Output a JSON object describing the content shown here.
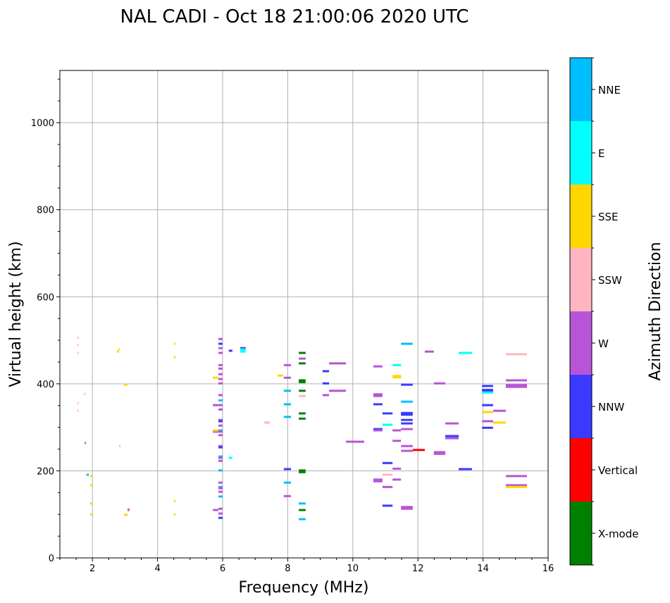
{
  "chart_data": {
    "type": "scatter",
    "title": "NAL CADI - Oct 18 21:00:06 2020 UTC",
    "xlabel": "Frequency (MHz)",
    "ylabel": "Virtual height (km)",
    "xlim": [
      1,
      16
    ],
    "ylim": [
      0,
      1120
    ],
    "xticks": [
      2,
      4,
      6,
      8,
      10,
      12,
      14,
      16
    ],
    "yticks": [
      0,
      200,
      400,
      600,
      800,
      1000
    ],
    "grid": true,
    "colorbar": {
      "label": "Azimuth Direction",
      "categories": [
        {
          "name": "X-mode",
          "color": "#008000"
        },
        {
          "name": "Vertical",
          "color": "#ff0000"
        },
        {
          "name": "NNW",
          "color": "#3a3aff"
        },
        {
          "name": "W",
          "color": "#b855d6"
        },
        {
          "name": "SSW",
          "color": "#ffb6c1"
        },
        {
          "name": "SSE",
          "color": "#ffd700"
        },
        {
          "name": "E",
          "color": "#00ffff"
        },
        {
          "name": "NNE",
          "color": "#00bfff"
        }
      ]
    },
    "segment_format": [
      "freq_start_MHz",
      "freq_end_MHz",
      "height_km",
      "direction_index"
    ],
    "segments": [
      [
        1.54,
        1.58,
        506,
        4
      ],
      [
        1.54,
        1.58,
        489,
        4
      ],
      [
        1.54,
        1.58,
        471,
        4
      ],
      [
        1.74,
        1.78,
        377,
        4
      ],
      [
        1.54,
        1.58,
        356,
        4
      ],
      [
        1.54,
        1.58,
        338,
        4
      ],
      [
        1.76,
        1.8,
        264,
        3
      ],
      [
        1.82,
        1.89,
        191,
        7
      ],
      [
        1.93,
        2.0,
        188,
        5
      ],
      [
        1.93,
        2.0,
        167,
        5
      ],
      [
        1.93,
        2.0,
        125,
        5
      ],
      [
        1.93,
        2.0,
        100,
        5
      ],
      [
        2.8,
        2.84,
        479,
        5
      ],
      [
        2.75,
        2.82,
        474,
        5
      ],
      [
        2.82,
        2.86,
        257,
        4
      ],
      [
        2.97,
        3.08,
        398,
        5
      ],
      [
        3.08,
        3.14,
        113,
        5
      ],
      [
        3.08,
        3.14,
        110,
        3
      ],
      [
        2.97,
        3.08,
        99,
        5
      ],
      [
        4.5,
        4.55,
        492,
        5
      ],
      [
        4.5,
        4.55,
        461,
        5
      ],
      [
        4.5,
        4.55,
        131,
        5
      ],
      [
        4.5,
        4.55,
        100,
        5
      ],
      [
        5.87,
        6.0,
        503,
        3
      ],
      [
        5.87,
        6.0,
        492,
        2
      ],
      [
        5.87,
        6.0,
        482,
        3
      ],
      [
        5.87,
        6.0,
        471,
        3
      ],
      [
        5.87,
        6.0,
        443,
        3
      ],
      [
        5.87,
        6.0,
        435,
        3
      ],
      [
        5.87,
        6.0,
        422,
        3
      ],
      [
        5.87,
        6.0,
        411,
        3
      ],
      [
        5.87,
        6.0,
        401,
        3
      ],
      [
        5.87,
        6.0,
        374,
        3
      ],
      [
        5.87,
        6.0,
        362,
        7
      ],
      [
        5.7,
        6.0,
        351,
        3
      ],
      [
        5.87,
        6.0,
        341,
        3
      ],
      [
        5.87,
        6.0,
        317,
        3
      ],
      [
        5.87,
        6.0,
        314,
        2
      ],
      [
        5.87,
        6.0,
        304,
        3
      ],
      [
        5.87,
        6.0,
        293,
        7
      ],
      [
        5.7,
        6.0,
        290,
        3
      ],
      [
        5.87,
        6.0,
        282,
        3
      ],
      [
        5.87,
        6.0,
        257,
        3
      ],
      [
        5.87,
        6.0,
        254,
        2
      ],
      [
        5.87,
        6.0,
        233,
        7
      ],
      [
        5.87,
        6.0,
        230,
        3
      ],
      [
        5.87,
        6.0,
        223,
        3
      ],
      [
        5.87,
        6.0,
        201,
        7
      ],
      [
        5.87,
        6.0,
        173,
        3
      ],
      [
        5.87,
        6.0,
        163,
        7
      ],
      [
        5.87,
        6.0,
        160,
        3
      ],
      [
        5.87,
        6.0,
        152,
        3
      ],
      [
        5.87,
        6.0,
        141,
        7
      ],
      [
        5.87,
        6.0,
        113,
        3
      ],
      [
        5.7,
        5.87,
        110,
        3
      ],
      [
        5.87,
        6.0,
        102,
        3
      ],
      [
        5.87,
        6.0,
        92,
        2
      ],
      [
        5.7,
        5.87,
        414,
        5
      ],
      [
        5.7,
        5.87,
        293,
        5
      ],
      [
        6.19,
        6.3,
        476,
        2
      ],
      [
        6.54,
        6.71,
        482,
        2
      ],
      [
        6.54,
        6.71,
        479,
        6
      ],
      [
        6.54,
        6.71,
        474,
        6
      ],
      [
        6.19,
        6.3,
        230,
        6
      ],
      [
        7.28,
        7.45,
        311,
        4
      ],
      [
        7.69,
        7.86,
        419,
        5
      ],
      [
        7.88,
        8.1,
        443,
        3
      ],
      [
        7.88,
        8.1,
        414,
        3
      ],
      [
        7.88,
        8.1,
        384,
        7
      ],
      [
        7.88,
        8.1,
        353,
        7
      ],
      [
        7.88,
        8.1,
        324,
        7
      ],
      [
        7.88,
        8.1,
        204,
        2
      ],
      [
        7.88,
        8.1,
        173,
        7
      ],
      [
        7.88,
        8.1,
        142,
        3
      ],
      [
        8.34,
        8.55,
        471,
        0
      ],
      [
        8.34,
        8.55,
        458,
        3
      ],
      [
        8.34,
        8.55,
        447,
        0
      ],
      [
        8.34,
        8.55,
        408,
        0
      ],
      [
        8.34,
        8.55,
        404,
        0
      ],
      [
        8.34,
        8.55,
        384,
        0
      ],
      [
        8.34,
        8.55,
        372,
        4
      ],
      [
        8.34,
        8.55,
        332,
        0
      ],
      [
        8.34,
        8.55,
        320,
        0
      ],
      [
        8.34,
        8.55,
        201,
        0
      ],
      [
        8.34,
        8.55,
        197,
        0
      ],
      [
        8.34,
        8.55,
        125,
        7
      ],
      [
        8.34,
        8.55,
        110,
        0
      ],
      [
        8.34,
        8.55,
        89,
        7
      ],
      [
        9.07,
        9.27,
        429,
        2
      ],
      [
        9.07,
        9.27,
        401,
        2
      ],
      [
        9.27,
        9.79,
        447,
        3
      ],
      [
        9.27,
        9.79,
        384,
        3
      ],
      [
        9.07,
        9.27,
        374,
        3
      ],
      [
        9.79,
        10.35,
        267,
        3
      ],
      [
        10.63,
        10.91,
        440,
        3
      ],
      [
        11.22,
        11.48,
        443,
        6
      ],
      [
        11.22,
        11.48,
        418,
        5
      ],
      [
        11.22,
        11.48,
        415,
        5
      ],
      [
        11.48,
        11.84,
        398,
        2
      ],
      [
        10.63,
        10.91,
        376,
        3
      ],
      [
        10.63,
        10.91,
        372,
        3
      ],
      [
        10.63,
        10.91,
        353,
        2
      ],
      [
        11.48,
        11.84,
        359,
        7
      ],
      [
        10.91,
        11.22,
        332,
        2
      ],
      [
        11.48,
        11.84,
        333,
        2
      ],
      [
        11.48,
        11.84,
        329,
        2
      ],
      [
        11.48,
        11.84,
        317,
        2
      ],
      [
        11.48,
        11.84,
        309,
        2
      ],
      [
        10.91,
        11.22,
        306,
        6
      ],
      [
        10.63,
        10.91,
        296,
        2
      ],
      [
        10.63,
        10.91,
        293,
        3
      ],
      [
        11.22,
        11.48,
        293,
        3
      ],
      [
        11.48,
        11.84,
        296,
        3
      ],
      [
        11.22,
        11.48,
        269,
        3
      ],
      [
        11.48,
        11.84,
        257,
        3
      ],
      [
        11.48,
        11.84,
        246,
        3
      ],
      [
        11.84,
        12.21,
        248,
        1
      ],
      [
        10.91,
        11.22,
        218,
        2
      ],
      [
        11.22,
        11.48,
        205,
        3
      ],
      [
        10.91,
        11.22,
        191,
        4
      ],
      [
        10.63,
        10.91,
        180,
        3
      ],
      [
        10.63,
        10.91,
        176,
        3
      ],
      [
        11.22,
        11.48,
        180,
        3
      ],
      [
        10.91,
        11.22,
        163,
        3
      ],
      [
        10.91,
        11.22,
        120,
        2
      ],
      [
        11.48,
        11.84,
        117,
        3
      ],
      [
        11.48,
        11.84,
        113,
        3
      ],
      [
        11.48,
        11.84,
        492,
        7
      ],
      [
        12.21,
        12.49,
        474,
        3
      ],
      [
        12.49,
        12.84,
        401,
        3
      ],
      [
        12.49,
        12.84,
        243,
        3
      ],
      [
        12.49,
        12.84,
        239,
        3
      ],
      [
        13.25,
        13.66,
        471,
        6
      ],
      [
        12.84,
        13.25,
        309,
        3
      ],
      [
        12.84,
        13.25,
        280,
        2
      ],
      [
        12.84,
        13.25,
        275,
        3
      ],
      [
        13.25,
        13.66,
        204,
        2
      ],
      [
        13.97,
        14.31,
        395,
        2
      ],
      [
        13.97,
        14.31,
        386,
        2
      ],
      [
        13.97,
        14.31,
        384,
        2
      ],
      [
        13.97,
        14.31,
        380,
        6
      ],
      [
        13.97,
        14.31,
        351,
        2
      ],
      [
        13.97,
        14.31,
        335,
        5
      ],
      [
        13.97,
        14.31,
        314,
        3
      ],
      [
        13.97,
        14.31,
        299,
        2
      ],
      [
        14.31,
        14.7,
        338,
        3
      ],
      [
        14.31,
        14.7,
        311,
        5
      ],
      [
        14.7,
        15.35,
        468,
        4
      ],
      [
        14.7,
        15.35,
        408,
        3
      ],
      [
        14.7,
        15.35,
        397,
        3
      ],
      [
        14.7,
        15.35,
        393,
        3
      ],
      [
        14.7,
        15.35,
        188,
        3
      ],
      [
        14.7,
        15.35,
        167,
        3
      ],
      [
        14.7,
        15.35,
        163,
        5
      ]
    ]
  }
}
